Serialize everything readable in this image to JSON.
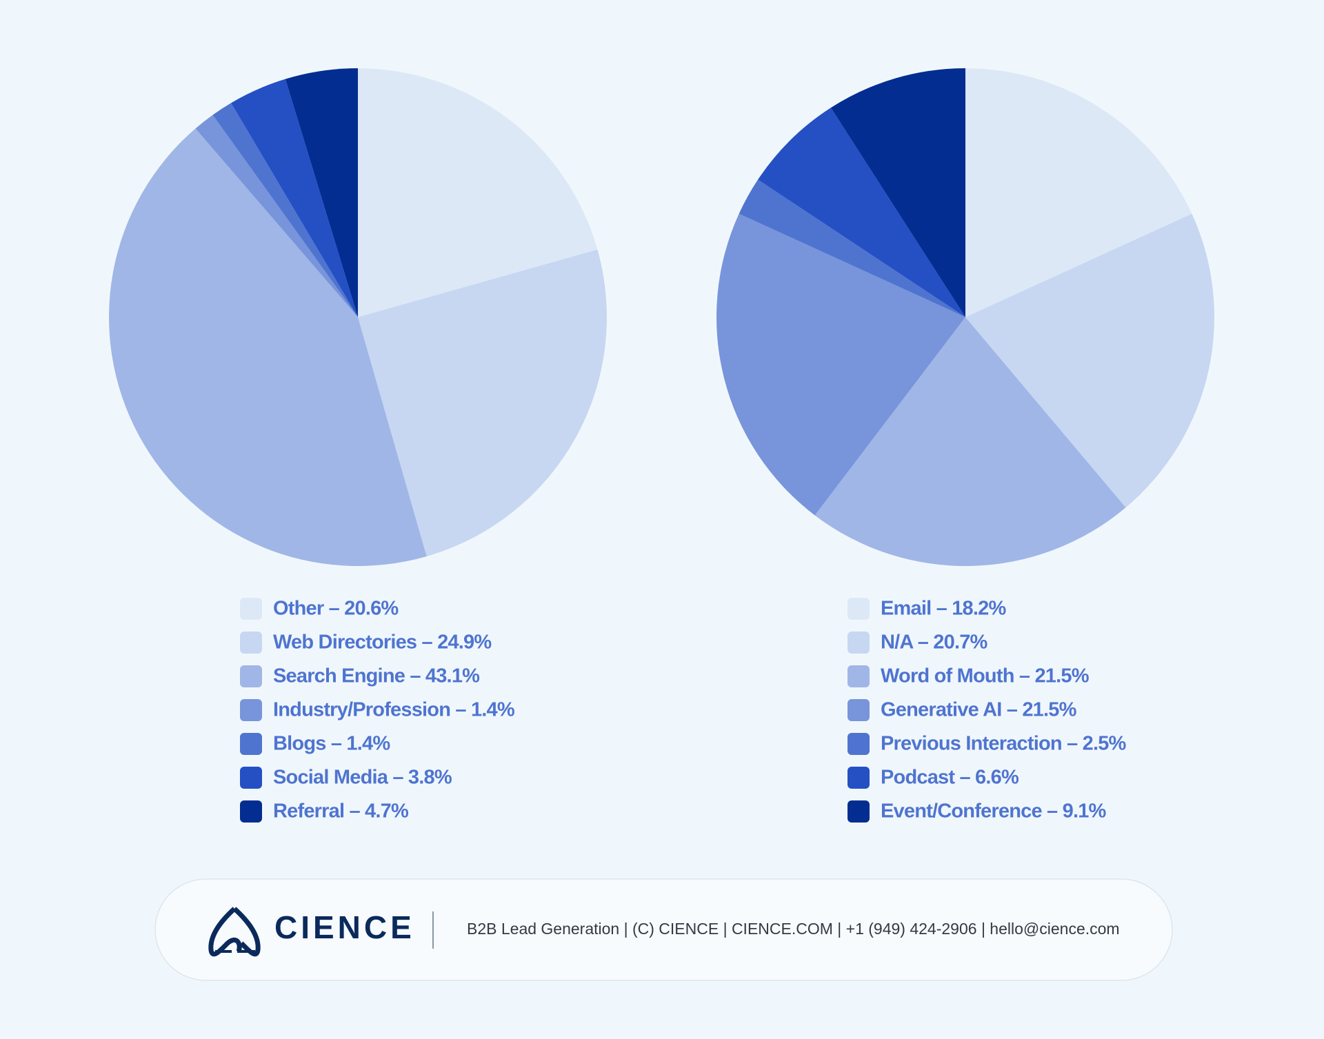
{
  "chart_data": [
    {
      "type": "pie",
      "categories": [
        "Other – 20.6%",
        "Web Directories – 24.9%",
        "Search Engine – 43.1%",
        "Industry/Profession – 1.4%",
        "Blogs – 1.4%",
        "Social Media – 3.8%",
        "Referral – 4.7%"
      ],
      "values": [
        20.6,
        24.9,
        43.1,
        1.4,
        1.4,
        3.8,
        4.7
      ],
      "colors": [
        "#dde8f7",
        "#c7d7f2",
        "#a0b6e6",
        "#7895db",
        "#4f74d0",
        "#2550c4",
        "#042d91"
      ]
    },
    {
      "type": "pie",
      "categories": [
        "Email – 18.2%",
        "N/A – 20.7%",
        "Word of Mouth – 21.5%",
        "Generative AI – 21.5%",
        "Previous Interaction – 2.5%",
        "Podcast – 6.6%",
        "Event/Conference – 9.1%"
      ],
      "values": [
        18.2,
        20.7,
        21.5,
        21.5,
        2.5,
        6.6,
        9.1
      ],
      "colors": [
        "#dde8f7",
        "#c7d7f2",
        "#a0b6e6",
        "#7895db",
        "#4f74d0",
        "#2550c4",
        "#042d91"
      ]
    }
  ],
  "footer": {
    "brand": "CIENCE",
    "text": "B2B Lead Generation | (C) CIENCE | CIENCE.COM | +1 (949) 424-2906 | hello@cience.com"
  }
}
